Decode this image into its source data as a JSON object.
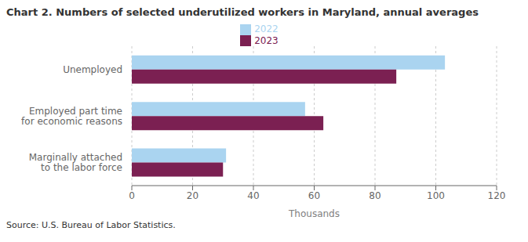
{
  "chart_data": {
    "type": "bar",
    "orientation": "horizontal",
    "title": "Chart 2.  Numbers of selected underutilized workers in Maryland, annual averages",
    "categories": [
      "Unemployed",
      "Employed part time\nfor economic reasons",
      "Marginally attached\nto the labor force"
    ],
    "series": [
      {
        "name": "2022",
        "color": "#aad4f0",
        "values": [
          103,
          57,
          31
        ]
      },
      {
        "name": "2023",
        "color": "#7b2052",
        "values": [
          87,
          63,
          30
        ]
      }
    ],
    "xlim": [
      0,
      120
    ],
    "xticks": [
      0,
      20,
      40,
      60,
      80,
      100,
      120
    ],
    "xlabel": "Thousands",
    "grid": true,
    "legend": "top",
    "annotations": [
      "Source: U.S. Bureau of Labor Statistics."
    ]
  }
}
